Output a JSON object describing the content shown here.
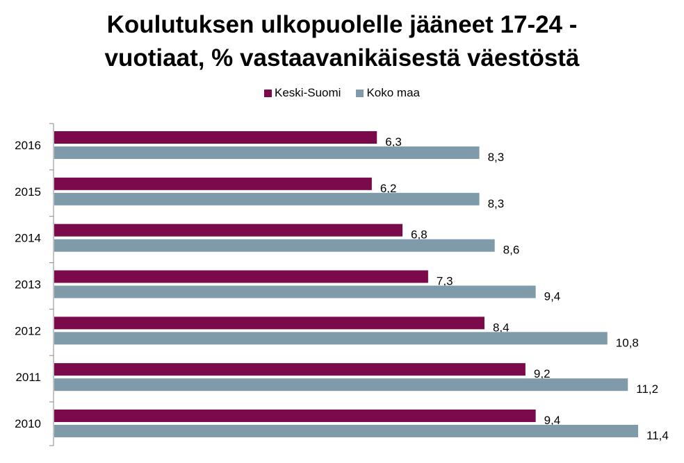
{
  "chart_data": {
    "type": "bar",
    "orientation": "horizontal",
    "title_lines": [
      "Koulutuksen ulkopuolelle jääneet 17-24 -",
      "vuotiaat, % vastaavanikäisestä väestöstä"
    ],
    "categories": [
      "2016",
      "2015",
      "2014",
      "2013",
      "2012",
      "2011",
      "2010"
    ],
    "series": [
      {
        "name": "Keski-Suomi",
        "color": "#7B0A4A",
        "values": [
          6.3,
          6.2,
          6.8,
          7.3,
          8.4,
          9.2,
          9.4
        ],
        "labels": [
          "6,3",
          "6,2",
          "6,8",
          "7,3",
          "8,4",
          "9,2",
          "9,4"
        ]
      },
      {
        "name": "Koko maa",
        "color": "#7F9AA8",
        "values": [
          8.3,
          8.3,
          8.6,
          9.4,
          10.8,
          11.2,
          11.4
        ],
        "labels": [
          "8,3",
          "8,3",
          "8,6",
          "9,4",
          "10,8",
          "11,2",
          "11,4"
        ]
      }
    ],
    "xlim": [
      0,
      11.4
    ],
    "grid": false,
    "legend_position": "top-center"
  }
}
